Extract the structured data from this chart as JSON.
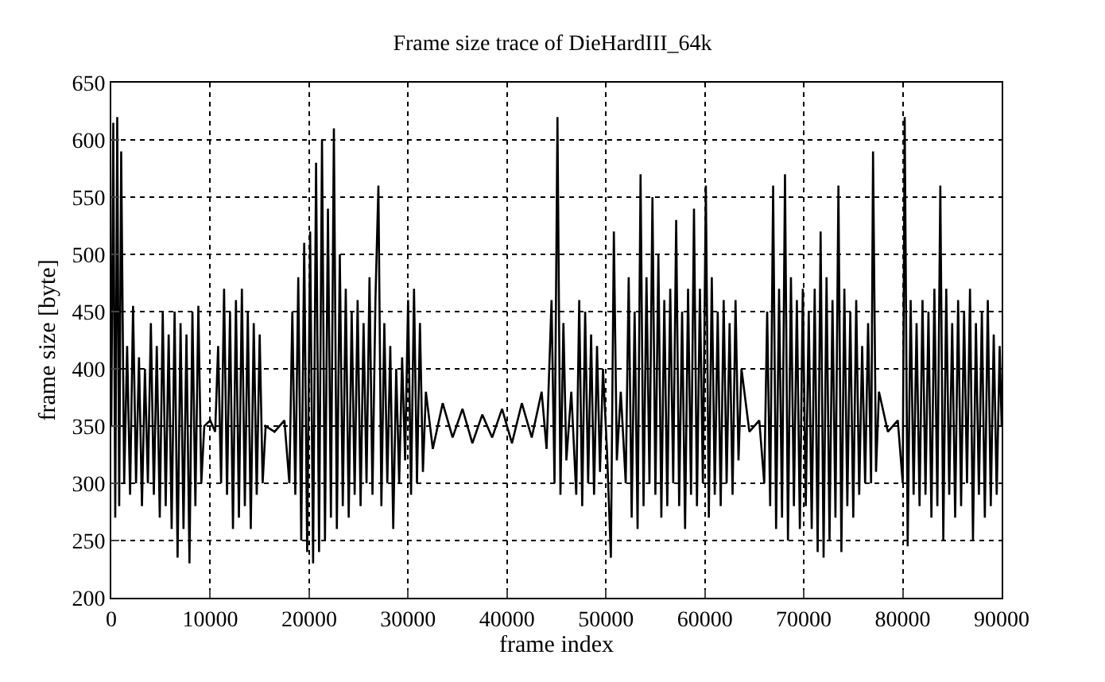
{
  "chart_data": {
    "type": "line",
    "title": "Frame size trace of DieHardIII_64k",
    "xlabel": "frame index",
    "ylabel": "frame size [byte]",
    "x": [
      0,
      200,
      400,
      600,
      800,
      1000,
      1300,
      1600,
      1900,
      2200,
      2500,
      2800,
      3100,
      3400,
      3700,
      4000,
      4300,
      4600,
      4900,
      5200,
      5500,
      5800,
      6100,
      6400,
      6700,
      7000,
      7300,
      7600,
      7900,
      8200,
      8500,
      8800,
      9100,
      9400,
      10000,
      10500,
      10800,
      11100,
      11400,
      11700,
      12000,
      12300,
      12600,
      12900,
      13200,
      13500,
      13800,
      14100,
      14400,
      14700,
      15000,
      15300,
      15600,
      16500,
      17500,
      18000,
      18300,
      18600,
      18900,
      19200,
      19500,
      19800,
      20100,
      20400,
      20700,
      21000,
      21300,
      21600,
      21900,
      22200,
      22500,
      22800,
      23100,
      23400,
      23700,
      24000,
      24300,
      24600,
      24900,
      25200,
      25500,
      25800,
      26100,
      26400,
      26700,
      27000,
      27300,
      27600,
      27900,
      28200,
      28500,
      28800,
      29100,
      29400,
      29700,
      30000,
      30300,
      30600,
      30900,
      31200,
      31500,
      31800,
      32500,
      33500,
      34500,
      35500,
      36500,
      37500,
      38500,
      39500,
      40500,
      41500,
      42500,
      43500,
      44000,
      44500,
      44800,
      45100,
      45400,
      45700,
      46000,
      46500,
      47000,
      47300,
      47600,
      47900,
      48200,
      48500,
      48800,
      49100,
      49400,
      49700,
      50100,
      50500,
      50800,
      51100,
      51500,
      52000,
      52300,
      52600,
      52900,
      53200,
      53500,
      53800,
      54100,
      54400,
      54700,
      55000,
      55300,
      55600,
      55900,
      56200,
      56500,
      56800,
      57100,
      57400,
      57700,
      58000,
      58300,
      58600,
      58900,
      59200,
      59500,
      59800,
      60100,
      60400,
      60700,
      61000,
      61300,
      61600,
      61900,
      62200,
      62500,
      62800,
      63100,
      63400,
      63700,
      64500,
      65500,
      66000,
      66300,
      66600,
      66900,
      67200,
      67500,
      67800,
      68100,
      68400,
      68700,
      69000,
      69300,
      69600,
      69900,
      70200,
      70500,
      70800,
      71100,
      71400,
      71700,
      72000,
      72300,
      72600,
      72900,
      73200,
      73500,
      73800,
      74100,
      74400,
      74700,
      75000,
      75300,
      75600,
      75900,
      76200,
      76500,
      76800,
      77000,
      77300,
      77600,
      78500,
      79500,
      80000,
      80200,
      80500,
      80800,
      81100,
      81400,
      81700,
      82000,
      82300,
      82600,
      82900,
      83200,
      83500,
      83800,
      84100,
      84400,
      84700,
      85000,
      85300,
      85600,
      85900,
      86200,
      86500,
      86800,
      87100,
      87400,
      87700,
      88000,
      88300,
      88600,
      88900,
      89200,
      89500,
      89800,
      90000
    ],
    "series": [
      {
        "color": "#000000",
        "values": [
          350,
          615,
          270,
          620,
          280,
          590,
          300,
          420,
          290,
          455,
          300,
          410,
          280,
          400,
          300,
          440,
          290,
          420,
          270,
          450,
          280,
          430,
          260,
          450,
          235,
          440,
          260,
          430,
          230,
          450,
          280,
          455,
          300,
          350,
          355,
          345,
          420,
          300,
          470,
          290,
          450,
          260,
          460,
          270,
          470,
          280,
          450,
          260,
          440,
          290,
          430,
          300,
          350,
          345,
          355,
          300,
          450,
          290,
          480,
          250,
          510,
          240,
          520,
          230,
          580,
          240,
          600,
          250,
          540,
          270,
          610,
          260,
          500,
          280,
          470,
          270,
          450,
          290,
          460,
          280,
          440,
          300,
          480,
          290,
          460,
          560,
          280,
          440,
          300,
          420,
          260,
          400,
          300,
          410,
          320,
          460,
          290,
          470,
          300,
          440,
          310,
          380,
          330,
          370,
          340,
          365,
          335,
          360,
          340,
          365,
          335,
          370,
          340,
          380,
          330,
          460,
          300,
          620,
          290,
          440,
          320,
          380,
          290,
          460,
          280,
          450,
          300,
          430,
          290,
          420,
          310,
          400,
          330,
          235,
          520,
          320,
          380,
          300,
          480,
          270,
          450,
          260,
          570,
          280,
          480,
          300,
          550,
          290,
          500,
          270,
          460,
          280,
          470,
          300,
          530,
          280,
          450,
          260,
          470,
          290,
          540,
          280,
          470,
          300,
          560,
          270,
          480,
          290,
          450,
          280,
          460,
          300,
          440,
          290,
          460,
          320,
          400,
          345,
          355,
          300,
          450,
          280,
          560,
          260,
          470,
          270,
          570,
          250,
          480,
          280,
          460,
          260,
          470,
          280,
          450,
          260,
          470,
          240,
          520,
          235,
          480,
          250,
          460,
          270,
          560,
          240,
          470,
          280,
          450,
          270,
          460,
          290,
          420,
          300,
          440,
          300,
          590,
          310,
          380,
          345,
          355,
          300,
          620,
          245,
          460,
          290,
          440,
          280,
          460,
          290,
          450,
          270,
          470,
          280,
          560,
          250,
          470,
          290,
          440,
          270,
          460,
          280,
          450,
          300,
          470,
          250,
          440,
          290,
          450,
          270,
          460,
          280,
          430,
          290,
          420,
          350
        ]
      }
    ],
    "xlim": [
      0,
      90000
    ],
    "xticks": [
      0,
      10000,
      20000,
      30000,
      40000,
      50000,
      60000,
      70000,
      80000,
      90000
    ],
    "ylim": [
      200,
      650
    ],
    "yticks": [
      200,
      250,
      300,
      350,
      400,
      450,
      500,
      550,
      600,
      650
    ],
    "grid": true,
    "legend": false,
    "marker": "none",
    "line_style": "solid"
  }
}
